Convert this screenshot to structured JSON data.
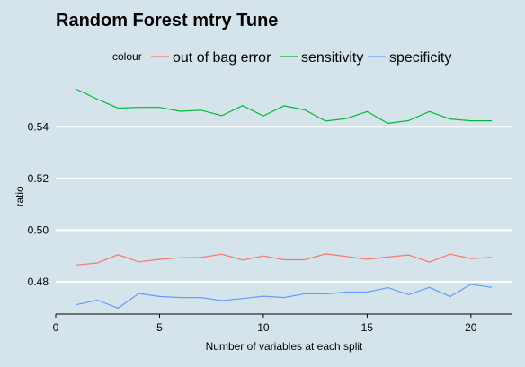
{
  "chart_data": {
    "type": "line",
    "title": "Random Forest mtry Tune",
    "xlabel": "Number of variables at each split",
    "ylabel": "ratio",
    "legend_title": "colour",
    "legend_position": "top",
    "grid": "horizontal major lines",
    "xlim": [
      0,
      22
    ],
    "ylim": [
      0.4675,
      0.5585
    ],
    "x_ticks": [
      0,
      5,
      10,
      15,
      20
    ],
    "y_ticks": [
      0.48,
      0.5,
      0.52,
      0.54
    ],
    "x_tick_labels": [
      "0",
      "5",
      "10",
      "15",
      "20"
    ],
    "y_tick_labels": [
      "0.48",
      "0.50",
      "0.52",
      "0.54"
    ],
    "x": [
      1,
      2,
      3,
      4,
      5,
      6,
      7,
      8,
      9,
      10,
      11,
      12,
      13,
      14,
      15,
      16,
      17,
      18,
      19,
      20,
      21
    ],
    "series": [
      {
        "name": "out of bag error",
        "color": "#f8766d",
        "values": [
          0.4865,
          0.4873,
          0.4905,
          0.4877,
          0.4887,
          0.4893,
          0.4894,
          0.4907,
          0.4884,
          0.49,
          0.4885,
          0.4885,
          0.4908,
          0.4898,
          0.4887,
          0.4896,
          0.4904,
          0.4876,
          0.4907,
          0.489,
          0.4894
        ]
      },
      {
        "name": "sensitivity",
        "color": "#00ba38",
        "values": [
          0.5545,
          0.5507,
          0.5472,
          0.5475,
          0.5475,
          0.546,
          0.5464,
          0.5443,
          0.5482,
          0.5442,
          0.5481,
          0.5465,
          0.5422,
          0.5432,
          0.5459,
          0.5413,
          0.5424,
          0.5459,
          0.543,
          0.5423,
          0.5423
        ]
      },
      {
        "name": "specificity",
        "color": "#619cff",
        "values": [
          0.4711,
          0.4729,
          0.4698,
          0.4755,
          0.4743,
          0.4739,
          0.4739,
          0.4727,
          0.4735,
          0.4744,
          0.4739,
          0.4754,
          0.4753,
          0.476,
          0.476,
          0.4777,
          0.475,
          0.4778,
          0.4743,
          0.479,
          0.4778
        ]
      }
    ]
  }
}
